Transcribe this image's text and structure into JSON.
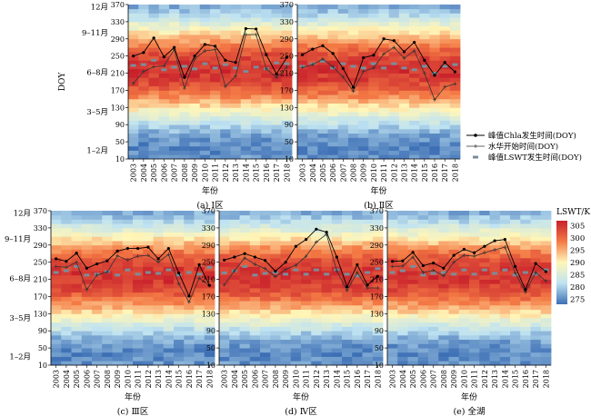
{
  "x_axis_label": "年份",
  "y_axis_label": "DOY",
  "y_ticks": [
    10,
    50,
    90,
    130,
    170,
    210,
    250,
    290,
    330,
    370
  ],
  "month_labels": [
    {
      "text": "1–2月",
      "doy": 30
    },
    {
      "text": "3–5月",
      "doy": 120
    },
    {
      "text": "6–8月",
      "doy": 212
    },
    {
      "text": "9–11月",
      "doy": 304
    },
    {
      "text": "12月",
      "doy": 365
    }
  ],
  "years": [
    "2003",
    "2004",
    "2005",
    "2006",
    "2007",
    "2008",
    "2009",
    "2010",
    "2011",
    "2012",
    "2013",
    "2014",
    "2015",
    "2016",
    "2017",
    "2018"
  ],
  "legend": {
    "chla": "峰值Chla发生时间(DOY)",
    "bloom": "水华开始时间(DOY)",
    "lswt": "峰值LSWT发生时间(DOY)"
  },
  "colorbar": {
    "title": "LSWT/K",
    "ticks": [
      275,
      280,
      285,
      290,
      295,
      300,
      305
    ],
    "range": [
      273,
      307
    ]
  },
  "colors": {
    "cold": "#3d6fb5",
    "cool": "#bfe3f2",
    "mild": "#fff6b8",
    "warm": "#f47a45",
    "hot": "#c8202b",
    "chla_line": "#000000",
    "bloom_line": "#333333",
    "lswt_marker": "#7b8d9a"
  },
  "chart_data": [
    {
      "type": "heatmap",
      "caption": "(a) Ⅰ区",
      "xlabel": "年份",
      "ylabel": "DOY",
      "categories": [
        "2003",
        "2004",
        "2005",
        "2006",
        "2007",
        "2008",
        "2009",
        "2010",
        "2011",
        "2012",
        "2013",
        "2014",
        "2015",
        "2016",
        "2017",
        "2018"
      ],
      "ylim": [
        10,
        370
      ],
      "series": [
        {
          "name": "峰值Chla发生时间(DOY)",
          "values": [
            250,
            258,
            292,
            248,
            270,
            200,
            250,
            277,
            273,
            240,
            235,
            314,
            313,
            253,
            208,
            247
          ]
        },
        {
          "name": "水华开始时间(DOY)",
          "values": [
            186,
            214,
            225,
            227,
            265,
            175,
            243,
            262,
            265,
            179,
            203,
            300,
            300,
            220,
            200,
            224
          ]
        },
        {
          "name": "峰值LSWT发生时间(DOY)",
          "values": [
            228,
            230,
            240,
            218,
            224,
            226,
            220,
            232,
            222,
            230,
            222,
            214,
            224,
            220,
            234,
            232
          ]
        }
      ]
    },
    {
      "type": "heatmap",
      "caption": "(b) Ⅱ区",
      "xlabel": "年份",
      "ylabel": "DOY",
      "categories": [
        "2003",
        "2004",
        "2005",
        "2006",
        "2007",
        "2008",
        "2009",
        "2010",
        "2011",
        "2012",
        "2013",
        "2014",
        "2015",
        "2016",
        "2017",
        "2018"
      ],
      "ylim": [
        10,
        370
      ],
      "series": [
        {
          "name": "峰值Chla发生时间(DOY)",
          "values": [
            253,
            266,
            274,
            256,
            221,
            177,
            246,
            252,
            290,
            286,
            260,
            282,
            240,
            205,
            235,
            213
          ]
        },
        {
          "name": "水华开始时间(DOY)",
          "values": [
            223,
            230,
            243,
            225,
            201,
            168,
            214,
            222,
            255,
            270,
            245,
            262,
            210,
            148,
            178,
            185
          ]
        },
        {
          "name": "峰值LSWT发生时间(DOY)",
          "values": [
            226,
            232,
            238,
            222,
            232,
            226,
            222,
            232,
            222,
            232,
            222,
            218,
            226,
            210,
            226,
            230
          ]
        }
      ]
    },
    {
      "type": "heatmap",
      "caption": "(c) Ⅲ区",
      "xlabel": "年份",
      "ylabel": "DOY",
      "categories": [
        "2003",
        "2004",
        "2005",
        "2006",
        "2007",
        "2008",
        "2009",
        "2010",
        "2011",
        "2012",
        "2013",
        "2014",
        "2015",
        "2016",
        "2017",
        "2018"
      ],
      "ylim": [
        10,
        370
      ],
      "series": [
        {
          "name": "峰值Chla发生时间(DOY)",
          "values": [
            258,
            252,
            271,
            236,
            246,
            253,
            276,
            282,
            282,
            285,
            258,
            282,
            225,
            171,
            244,
            196
          ]
        },
        {
          "name": "水华开始时间(DOY)",
          "values": [
            240,
            238,
            250,
            186,
            220,
            227,
            265,
            255,
            264,
            266,
            250,
            268,
            200,
            157,
            213,
            195
          ]
        },
        {
          "name": "峰值LSWT发生时间(DOY)",
          "values": [
            226,
            230,
            240,
            220,
            222,
            228,
            220,
            232,
            222,
            226,
            224,
            232,
            220,
            226,
            222,
            238
          ]
        }
      ]
    },
    {
      "type": "heatmap",
      "caption": "(d) Ⅳ区",
      "xlabel": "年份",
      "ylabel": "DOY",
      "categories": [
        "2003",
        "2004",
        "2005",
        "2006",
        "2007",
        "2008",
        "2009",
        "2010",
        "2011",
        "2012",
        "2013",
        "2014",
        "2015",
        "2016",
        "2017",
        "2018"
      ],
      "ylim": [
        10,
        370
      ],
      "series": [
        {
          "name": "峰值Chla发生时间(DOY)",
          "values": [
            255,
            262,
            270,
            262,
            254,
            229,
            250,
            287,
            303,
            327,
            320,
            262,
            193,
            244,
            197,
            217
          ]
        },
        {
          "name": "水华开始时间(DOY)",
          "values": [
            197,
            230,
            260,
            245,
            235,
            216,
            233,
            243,
            264,
            297,
            315,
            230,
            184,
            226,
            190,
            190
          ]
        },
        {
          "name": "峰值LSWT发生时间(DOY)",
          "values": [
            225,
            230,
            240,
            220,
            224,
            226,
            222,
            232,
            222,
            232,
            222,
            232,
            222,
            218,
            226,
            235
          ]
        }
      ]
    },
    {
      "type": "heatmap",
      "caption": "(e) 全湖",
      "xlabel": "年份",
      "ylabel": "DOY",
      "categories": [
        "2003",
        "2004",
        "2005",
        "2006",
        "2007",
        "2008",
        "2009",
        "2010",
        "2011",
        "2012",
        "2013",
        "2014",
        "2015",
        "2016",
        "2017",
        "2018"
      ],
      "ylim": [
        10,
        370
      ],
      "series": [
        {
          "name": "峰值Chla发生时间(DOY)",
          "values": [
            252,
            253,
            273,
            242,
            248,
            236,
            266,
            280,
            272,
            287,
            300,
            303,
            240,
            186,
            247,
            228
          ]
        },
        {
          "name": "水华开始时间(DOY)",
          "values": [
            240,
            241,
            262,
            226,
            231,
            218,
            250,
            266,
            264,
            272,
            279,
            285,
            225,
            180,
            226,
            206
          ]
        },
        {
          "name": "峰值LSWT发生时间(DOY)",
          "values": [
            226,
            230,
            240,
            220,
            224,
            226,
            222,
            232,
            222,
            232,
            224,
            232,
            220,
            226,
            222,
            232
          ]
        }
      ]
    }
  ]
}
